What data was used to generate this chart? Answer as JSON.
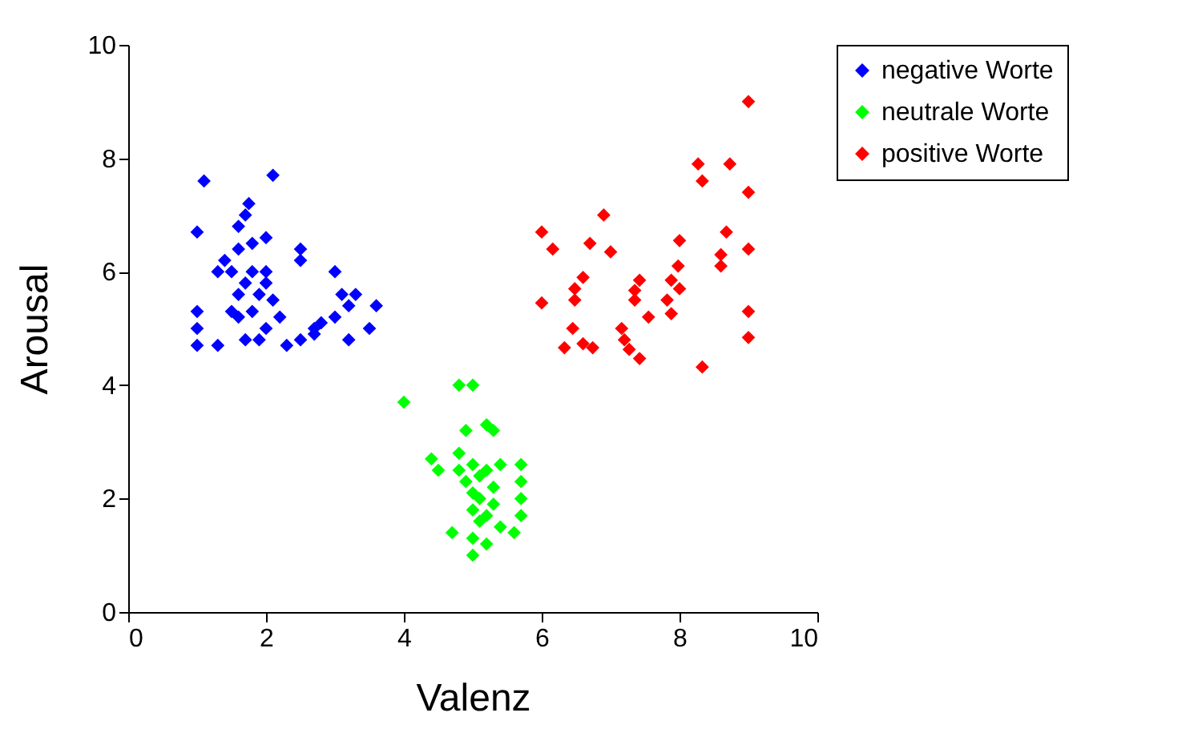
{
  "chart_data": {
    "type": "scatter",
    "xlabel": "Valenz",
    "ylabel": "Arousal",
    "xlim": [
      0,
      10
    ],
    "ylim": [
      0,
      10
    ],
    "xticks": [
      0,
      2,
      4,
      6,
      8,
      10
    ],
    "yticks": [
      0,
      2,
      4,
      6,
      8,
      10
    ],
    "grid": false,
    "legend": "right",
    "marker": "diamond",
    "series": [
      {
        "name": "negative Worte",
        "color": "#0000ff",
        "x": [
          1.1,
          2.1,
          1.0,
          1.75,
          1.7,
          1.6,
          1.8,
          2.0,
          1.6,
          1.4,
          2.5,
          2.5,
          1.3,
          1.5,
          1.8,
          2.0,
          3.0,
          1.7,
          2.0,
          1.6,
          1.9,
          2.1,
          3.1,
          3.3,
          3.2,
          1.8,
          2.2,
          3.0,
          3.6,
          1.0,
          1.6,
          2.8,
          2.7,
          3.5,
          1.0,
          2.5,
          1.7,
          1.9,
          3.2,
          1.0,
          1.3,
          2.3,
          2.7,
          1.5,
          2.0
        ],
        "values": [
          7.6,
          7.7,
          6.7,
          7.2,
          7.0,
          6.8,
          6.5,
          6.6,
          6.4,
          6.2,
          6.4,
          6.2,
          6.0,
          6.0,
          6.0,
          6.0,
          6.0,
          5.8,
          5.8,
          5.6,
          5.6,
          5.5,
          5.6,
          5.6,
          5.4,
          5.3,
          5.2,
          5.2,
          5.4,
          5.3,
          5.2,
          5.1,
          4.9,
          5.0,
          5.0,
          4.8,
          4.8,
          4.8,
          4.8,
          4.7,
          4.7,
          4.7,
          5.0,
          5.3,
          5.0
        ]
      },
      {
        "name": "neutrale Worte",
        "color": "#00ff00",
        "x": [
          4.0,
          4.8,
          5.0,
          5.2,
          5.3,
          4.9,
          4.4,
          4.5,
          4.8,
          5.0,
          5.2,
          5.4,
          5.7,
          5.7,
          4.9,
          5.0,
          5.1,
          4.8,
          5.1,
          5.3,
          5.7,
          5.0,
          5.2,
          5.4,
          5.7,
          4.7,
          5.0,
          5.2,
          5.0,
          5.6,
          5.1,
          5.3
        ],
        "values": [
          3.7,
          4.0,
          4.0,
          3.3,
          3.2,
          3.2,
          2.7,
          2.5,
          2.8,
          2.6,
          2.5,
          2.6,
          2.6,
          2.3,
          2.3,
          2.1,
          2.4,
          2.5,
          2.0,
          1.9,
          2.0,
          1.8,
          1.7,
          1.5,
          1.7,
          1.4,
          1.3,
          1.2,
          1.0,
          1.4,
          1.6,
          2.2
        ]
      },
      {
        "name": "positive Worte",
        "color": "#ff0000",
        "x": [
          9.0,
          8.27,
          8.33,
          8.73,
          9.0,
          6.9,
          6.0,
          6.16,
          6.7,
          7.0,
          8.0,
          8.68,
          9.0,
          8.6,
          8.6,
          6.6,
          6.48,
          6.48,
          6.0,
          7.42,
          7.35,
          7.35,
          7.98,
          7.88,
          8.0,
          7.82,
          7.88,
          7.55,
          6.45,
          6.33,
          6.6,
          6.74,
          7.16,
          7.2,
          7.27,
          7.42,
          8.33,
          9.0,
          9.0
        ],
        "values": [
          9.0,
          7.9,
          7.6,
          7.9,
          7.4,
          7.0,
          6.7,
          6.4,
          6.5,
          6.35,
          6.55,
          6.7,
          6.4,
          6.3,
          6.1,
          5.9,
          5.7,
          5.5,
          5.45,
          5.85,
          5.67,
          5.5,
          6.1,
          5.85,
          5.7,
          5.5,
          5.26,
          5.2,
          5.0,
          4.66,
          4.73,
          4.66,
          5.0,
          4.8,
          4.63,
          4.47,
          4.32,
          5.3,
          4.84
        ]
      }
    ]
  }
}
